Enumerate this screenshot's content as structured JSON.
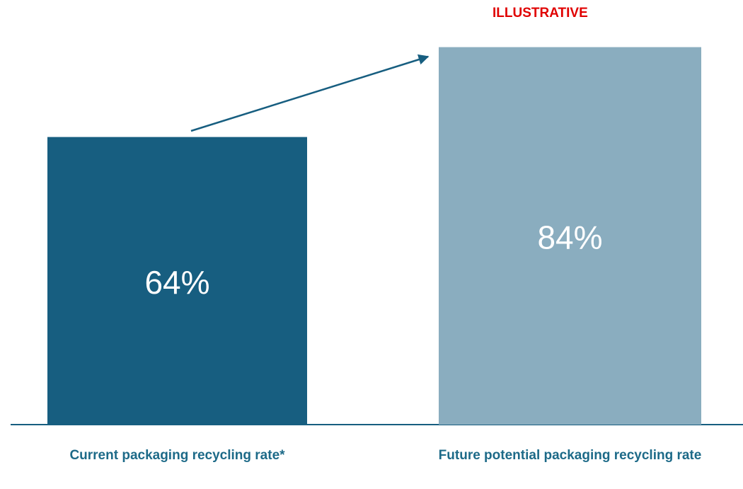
{
  "chart_data": {
    "type": "bar",
    "annotation": "ILLUSTRATIVE",
    "categories": [
      "Current packaging recycling rate*",
      "Future potential packaging recycling rate"
    ],
    "values": [
      64,
      84
    ],
    "value_labels": [
      "64%",
      "84%"
    ],
    "colors": [
      "#175e80",
      "#8aadbf"
    ]
  }
}
